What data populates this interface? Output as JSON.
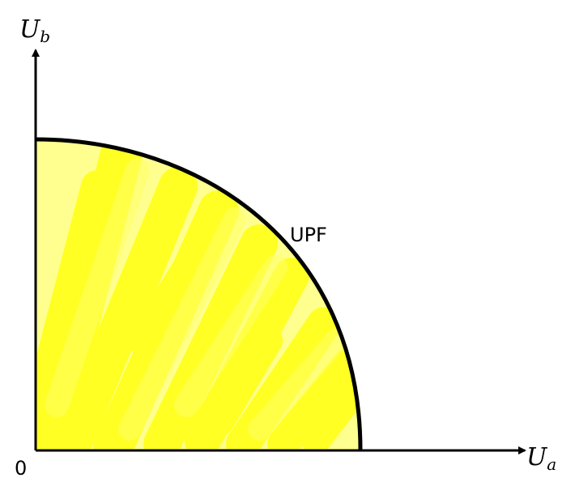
{
  "diagram": {
    "y_axis_label": {
      "main": "U",
      "sub": "b"
    },
    "x_axis_label": {
      "main": "U",
      "sub": "a"
    },
    "origin_label": "0",
    "curve_label": "UPF",
    "colors": {
      "axis": "#000000",
      "curve": "#000000",
      "fill": "#ffff00",
      "background": "#ffffff"
    }
  }
}
